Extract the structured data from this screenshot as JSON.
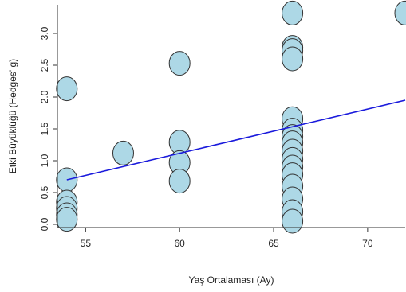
{
  "chart_data": {
    "type": "scatter",
    "title": "",
    "xlabel": "Yaş Ortalaması (Ay)",
    "ylabel": "Etki Büyüklüğü (Hedges' g)",
    "xlim": [
      53.5,
      72
    ],
    "ylim": [
      -0.05,
      3.45
    ],
    "xticks": [
      55,
      60,
      65,
      70
    ],
    "yticks": [
      0.0,
      0.5,
      1.0,
      1.5,
      2.0,
      2.5,
      3.0
    ],
    "ytick_labels": [
      "0.0",
      "0.5",
      "1.0",
      "1.5",
      "2.0",
      "2.5",
      "3.0"
    ],
    "grid": false,
    "points": [
      {
        "x": 54,
        "y": 2.13
      },
      {
        "x": 54,
        "y": 0.7
      },
      {
        "x": 54,
        "y": 0.35
      },
      {
        "x": 54,
        "y": 0.25
      },
      {
        "x": 54,
        "y": 0.15
      },
      {
        "x": 54,
        "y": 0.08
      },
      {
        "x": 57,
        "y": 1.12
      },
      {
        "x": 60,
        "y": 2.53
      },
      {
        "x": 60,
        "y": 1.29
      },
      {
        "x": 60,
        "y": 0.97
      },
      {
        "x": 60,
        "y": 0.68
      },
      {
        "x": 66,
        "y": 3.32
      },
      {
        "x": 66,
        "y": 2.78
      },
      {
        "x": 66,
        "y": 2.73
      },
      {
        "x": 66,
        "y": 2.6
      },
      {
        "x": 66,
        "y": 1.66
      },
      {
        "x": 66,
        "y": 1.48
      },
      {
        "x": 66,
        "y": 1.38
      },
      {
        "x": 66,
        "y": 1.28
      },
      {
        "x": 66,
        "y": 1.15
      },
      {
        "x": 66,
        "y": 1.02
      },
      {
        "x": 66,
        "y": 0.9
      },
      {
        "x": 66,
        "y": 0.78
      },
      {
        "x": 66,
        "y": 0.6
      },
      {
        "x": 66,
        "y": 0.4
      },
      {
        "x": 66,
        "y": 0.2
      },
      {
        "x": 66,
        "y": 0.05
      },
      {
        "x": 72,
        "y": 3.32
      }
    ],
    "regression_line": {
      "x": [
        54,
        72
      ],
      "y": [
        0.7,
        1.95
      ]
    },
    "colors": {
      "point_fill": "#add8e6",
      "point_stroke": "#333333",
      "line": "#1a1adc",
      "axis": "#333333"
    }
  }
}
